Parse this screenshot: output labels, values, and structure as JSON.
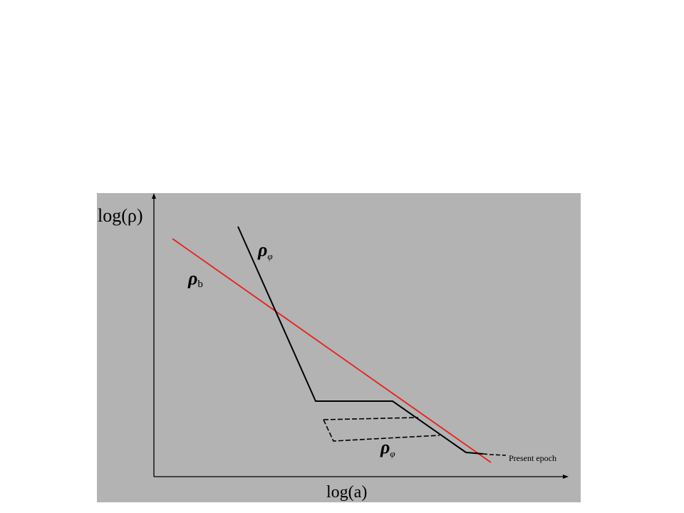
{
  "diagram": {
    "y_axis_label": "log(ρ)",
    "x_axis_label": "log(a)",
    "rho_b_label": {
      "symbol": "ρ",
      "subscript": "b"
    },
    "rho_phi_label_top": {
      "symbol": "ρ",
      "subscript": "φ"
    },
    "rho_phi_label_bottom": {
      "symbol": "ρ",
      "subscript": "φ"
    },
    "present_epoch_label": "Present epoch",
    "colors": {
      "background": "#b3b3b3",
      "rho_b_line": "#e8201c",
      "rho_phi_line": "#000000",
      "axes": "#000000"
    }
  }
}
